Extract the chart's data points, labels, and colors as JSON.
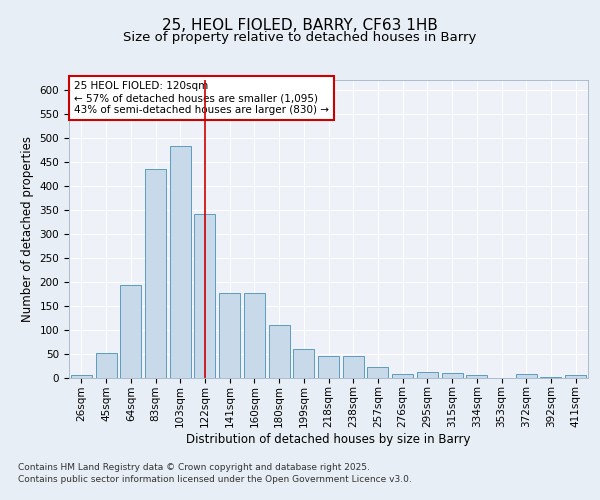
{
  "title1": "25, HEOL FIOLED, BARRY, CF63 1HB",
  "title2": "Size of property relative to detached houses in Barry",
  "xlabel": "Distribution of detached houses by size in Barry",
  "ylabel": "Number of detached properties",
  "bar_labels": [
    "26sqm",
    "45sqm",
    "64sqm",
    "83sqm",
    "103sqm",
    "122sqm",
    "141sqm",
    "160sqm",
    "180sqm",
    "199sqm",
    "218sqm",
    "238sqm",
    "257sqm",
    "276sqm",
    "295sqm",
    "315sqm",
    "334sqm",
    "353sqm",
    "372sqm",
    "392sqm",
    "411sqm"
  ],
  "bar_values": [
    5,
    52,
    192,
    435,
    482,
    340,
    176,
    176,
    110,
    60,
    45,
    45,
    21,
    8,
    11,
    10,
    5,
    0,
    7,
    2,
    5
  ],
  "bar_color": "#c8d9ea",
  "bar_edge_color": "#5b9cbd",
  "vline_x": 5,
  "vline_color": "#cc0000",
  "annotation_text": "25 HEOL FIOLED: 120sqm\n← 57% of detached houses are smaller (1,095)\n43% of semi-detached houses are larger (830) →",
  "annotation_box_color": "#ffffff",
  "annotation_box_edge": "#cc0000",
  "ylim": [
    0,
    620
  ],
  "yticks": [
    0,
    50,
    100,
    150,
    200,
    250,
    300,
    350,
    400,
    450,
    500,
    550,
    600
  ],
  "footer1": "Contains HM Land Registry data © Crown copyright and database right 2025.",
  "footer2": "Contains public sector information licensed under the Open Government Licence v3.0.",
  "bg_color": "#e8eef5",
  "plot_bg_color": "#eef2f8",
  "title_fontsize": 11,
  "subtitle_fontsize": 9.5,
  "axis_label_fontsize": 8.5,
  "tick_fontsize": 7.5,
  "footer_fontsize": 6.5
}
